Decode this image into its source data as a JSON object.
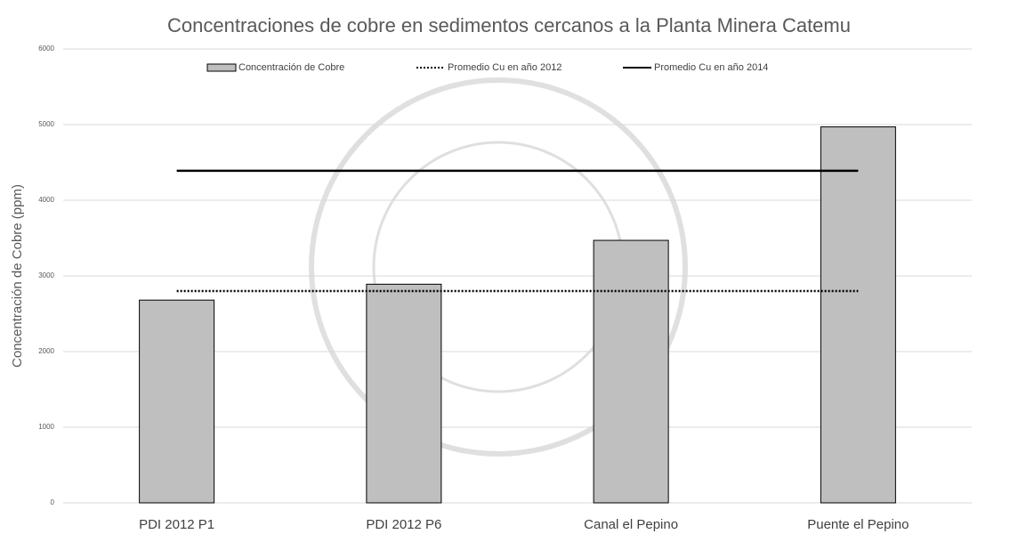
{
  "chart_data": {
    "type": "bar",
    "title": "Concentraciones de cobre en sedimentos cercanos a la Planta Minera Catemu",
    "y_label": "Concentración de Cobre (ppm)",
    "categories": [
      "PDI 2012 P1",
      "PDI 2012 P6",
      "Canal el Pepino",
      "Puente el Pepino"
    ],
    "series": [
      {
        "name": "Concentración de Cobre",
        "type": "bar",
        "color": "#bfbfbf",
        "values": [
          2680,
          2890,
          3470,
          4970
        ]
      },
      {
        "name": "Promedio Cu en año 2012",
        "type": "line",
        "dash": "dotted",
        "color": "#000000",
        "values": [
          2800,
          2800,
          2800,
          2800
        ]
      },
      {
        "name": "Promedio Cu en año 2014",
        "type": "line",
        "dash": "solid",
        "color": "#000000",
        "values": [
          4390,
          4390,
          4390,
          4390
        ]
      }
    ],
    "ylim": [
      0,
      6000
    ],
    "yticks": [
      0,
      1000,
      2000,
      3000,
      4000,
      5000,
      6000
    ],
    "grid": true,
    "legend": "top"
  }
}
